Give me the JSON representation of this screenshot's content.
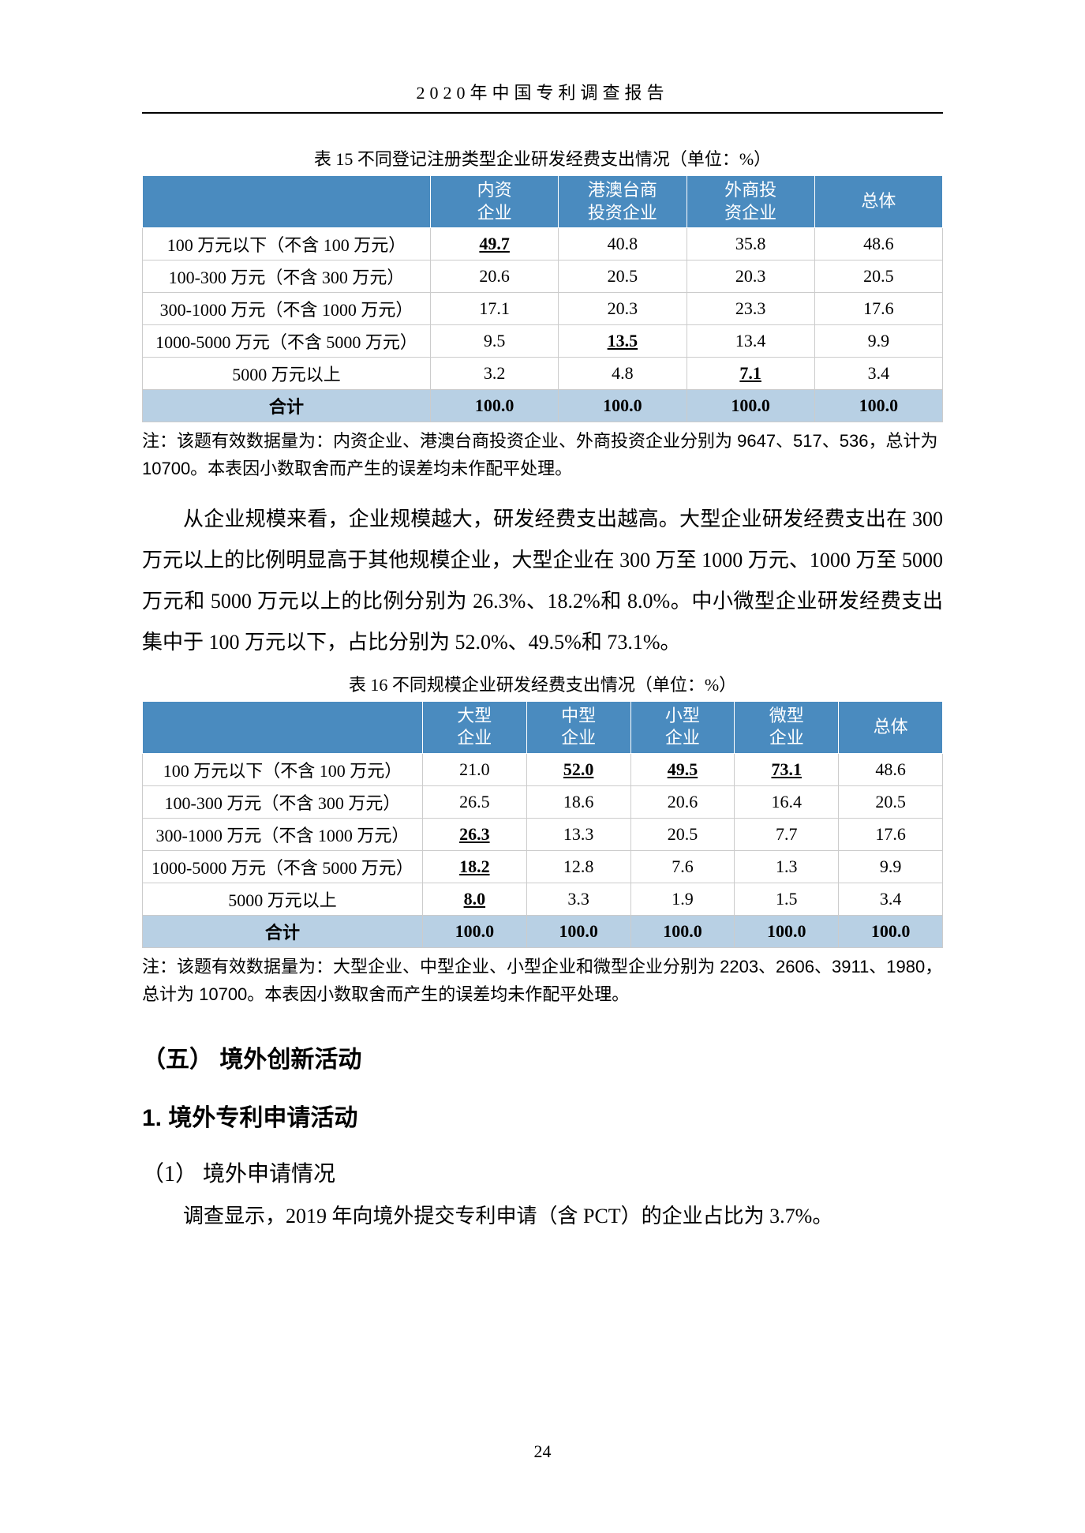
{
  "doc_header": "2020年中国专利调查报告",
  "page_number": "24",
  "table15": {
    "type": "table",
    "caption": "表 15 不同登记注册类型企业研发经费支出情况（单位：%）",
    "header_bg": "#4a8bbf",
    "header_fg": "#ffffff",
    "total_row_bg": "#b8d0e4",
    "columns": [
      "",
      "内资企业",
      "港澳台商投资企业",
      "外商投资企业",
      "总体"
    ],
    "col_widths_pct": [
      36,
      16,
      16,
      16,
      16
    ],
    "rows": [
      {
        "label": "100 万元以下（不含 100 万元）",
        "values": [
          "49.7",
          "40.8",
          "35.8",
          "48.6"
        ],
        "underline": [
          true,
          false,
          false,
          false
        ]
      },
      {
        "label": "100-300 万元（不含 300 万元）",
        "values": [
          "20.6",
          "20.5",
          "20.3",
          "20.5"
        ],
        "underline": [
          false,
          false,
          false,
          false
        ]
      },
      {
        "label": "300-1000 万元（不含 1000 万元）",
        "values": [
          "17.1",
          "20.3",
          "23.3",
          "17.6"
        ],
        "underline": [
          false,
          false,
          false,
          false
        ]
      },
      {
        "label": "1000-5000 万元（不含 5000 万元）",
        "values": [
          "9.5",
          "13.5",
          "13.4",
          "9.9"
        ],
        "underline": [
          false,
          true,
          false,
          false
        ]
      },
      {
        "label": "5000 万元以上",
        "values": [
          "3.2",
          "4.8",
          "7.1",
          "3.4"
        ],
        "underline": [
          false,
          false,
          true,
          false
        ]
      }
    ],
    "total": {
      "label": "合计",
      "values": [
        "100.0",
        "100.0",
        "100.0",
        "100.0"
      ]
    },
    "note": "注：该题有效数据量为：内资企业、港澳台商投资企业、外商投资企业分别为 9647、517、536，总计为 10700。本表因小数取舍而产生的误差均未作配平处理。"
  },
  "para1": "从企业规模来看，企业规模越大，研发经费支出越高。大型企业研发经费支出在 300 万元以上的比例明显高于其他规模企业，大型企业在 300 万至 1000 万元、1000 万至 5000 万元和 5000 万元以上的比例分别为 26.3%、18.2%和 8.0%。中小微型企业研发经费支出集中于 100 万元以下，占比分别为 52.0%、49.5%和 73.1%。",
  "table16": {
    "type": "table",
    "caption": "表 16 不同规模企业研发经费支出情况（单位：%）",
    "header_bg": "#4a8bbf",
    "header_fg": "#ffffff",
    "total_row_bg": "#b8d0e4",
    "columns": [
      "",
      "大型企业",
      "中型企业",
      "小型企业",
      "微型企业",
      "总体"
    ],
    "col_widths_pct": [
      35,
      13,
      13,
      13,
      13,
      13
    ],
    "rows": [
      {
        "label": "100 万元以下（不含 100 万元）",
        "values": [
          "21.0",
          "52.0",
          "49.5",
          "73.1",
          "48.6"
        ],
        "underline": [
          false,
          true,
          true,
          true,
          false
        ]
      },
      {
        "label": "100-300 万元（不含 300 万元）",
        "values": [
          "26.5",
          "18.6",
          "20.6",
          "16.4",
          "20.5"
        ],
        "underline": [
          false,
          false,
          false,
          false,
          false
        ]
      },
      {
        "label": "300-1000 万元（不含 1000 万元）",
        "values": [
          "26.3",
          "13.3",
          "20.5",
          "7.7",
          "17.6"
        ],
        "underline": [
          true,
          false,
          false,
          false,
          false
        ]
      },
      {
        "label": "1000-5000 万元（不含 5000 万元）",
        "values": [
          "18.2",
          "12.8",
          "7.6",
          "1.3",
          "9.9"
        ],
        "underline": [
          true,
          false,
          false,
          false,
          false
        ]
      },
      {
        "label": "5000 万元以上",
        "values": [
          "8.0",
          "3.3",
          "1.9",
          "1.5",
          "3.4"
        ],
        "underline": [
          true,
          false,
          false,
          false,
          false
        ]
      }
    ],
    "total": {
      "label": "合计",
      "values": [
        "100.0",
        "100.0",
        "100.0",
        "100.0",
        "100.0"
      ]
    },
    "note": "注：该题有效数据量为：大型企业、中型企业、小型企业和微型企业分别为 2203、2606、3911、1980，总计为 10700。本表因小数取舍而产生的误差均未作配平处理。"
  },
  "heading_section": "（五） 境外创新活动",
  "heading_sub1": "1. 境外专利申请活动",
  "heading_sub2": "（1） 境外申请情况",
  "para2": "调查显示，2019 年向境外提交专利申请（含 PCT）的企业占比为 3.7%。"
}
